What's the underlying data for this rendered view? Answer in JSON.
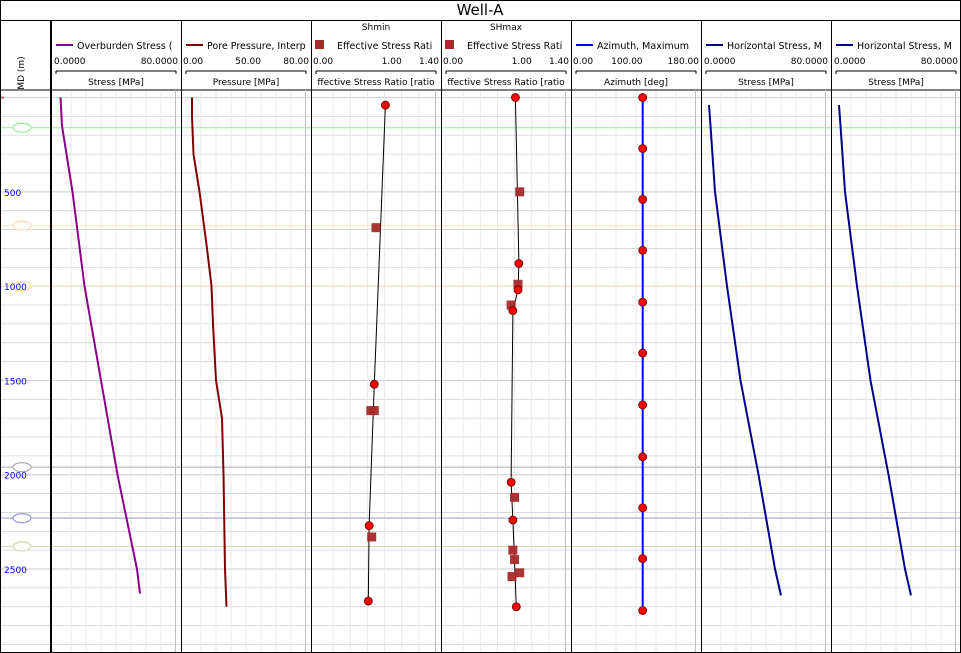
{
  "window_title": "Well-A",
  "depth_axis": {
    "label": "MD (m)",
    "ticks": [
      500,
      1000,
      1500,
      2000,
      2500
    ],
    "range": [
      -40,
      2940
    ]
  },
  "colors": {
    "overburden": "#8b008b",
    "pore_pressure": "#800000",
    "stress_ratio_points": "#ff0000",
    "stress_ratio_squares": "#a52a2a",
    "azimuth": "#0000ff",
    "horizontal_stress": "#00008b",
    "grid": "#d3d3d3",
    "depth_ticks": "#0000ff",
    "markers": [
      {
        "color": "#90ee90"
      },
      {
        "color": "#ffdab9"
      },
      {
        "color": "#ffdab9"
      },
      {
        "color": "#a9a9a9"
      },
      {
        "color": "#9999dd"
      },
      {
        "color": "#d8d8a8"
      }
    ]
  },
  "marker_depths": [
    160,
    680,
    1000,
    1960,
    2230,
    2380
  ],
  "chart_data": [
    {
      "type": "line",
      "track": "overburden",
      "title": "",
      "legend": "Overburden Stress (",
      "xlabel": "Stress [MPa]",
      "xlim": [
        0,
        80
      ],
      "x_tick_labels": [
        "0.0000",
        "80.0000"
      ],
      "series": [
        {
          "name": "Overburden Stress (",
          "points": [
            [
              3,
              0
            ],
            [
              4,
              150
            ],
            [
              5,
              200
            ],
            [
              11,
              500
            ],
            [
              19,
              1000
            ],
            [
              30,
              1500
            ],
            [
              41,
              2000
            ],
            [
              54,
              2500
            ],
            [
              56,
              2630
            ]
          ]
        }
      ]
    },
    {
      "type": "line",
      "track": "pore_pressure",
      "title": "",
      "legend": "Pore Pressure, Interp",
      "xlabel": "Pressure [MPa]",
      "xlim": [
        0,
        80
      ],
      "x_tick_labels": [
        "0.00",
        "50.00",
        "80.00"
      ],
      "series": [
        {
          "name": "Pore Pressure, Interp",
          "points": [
            [
              4,
              0
            ],
            [
              4,
              100
            ],
            [
              5,
              300
            ],
            [
              9,
              500
            ],
            [
              14,
              800
            ],
            [
              17,
              1000
            ],
            [
              18,
              1200
            ],
            [
              20,
              1500
            ],
            [
              24,
              1700
            ],
            [
              25,
              2000
            ],
            [
              26,
              2500
            ],
            [
              27,
              2700
            ]
          ]
        }
      ]
    },
    {
      "type": "scatter",
      "track": "shmin",
      "title": "Shmin",
      "legend": "Effective Stress Rati",
      "xlabel": "ffective Stress Ratio [ratio",
      "xlim": [
        0,
        1.4
      ],
      "x_tick_labels": [
        "0.00",
        "1.00",
        "1.40"
      ],
      "line_points": [
        [
          0.81,
          40
        ],
        [
          0.68,
          1520
        ],
        [
          0.62,
          2270
        ],
        [
          0.61,
          2670
        ]
      ],
      "square_points": [
        [
          0.7,
          690
        ],
        [
          0.64,
          1660
        ],
        [
          0.68,
          1660
        ],
        [
          0.65,
          2330
        ]
      ]
    },
    {
      "type": "scatter",
      "track": "shmax",
      "title": "SHmax",
      "legend": "Effective Stress Rati",
      "xlabel": "ffective Stress Ratio [ratio",
      "xlim": [
        0,
        1.4
      ],
      "x_tick_labels": [
        "0.00",
        "1.00",
        "1.40"
      ],
      "line_points": [
        [
          0.81,
          0
        ],
        [
          0.85,
          880
        ],
        [
          0.84,
          1020
        ],
        [
          0.78,
          1130
        ],
        [
          0.76,
          2040
        ],
        [
          0.78,
          2240
        ],
        [
          0.82,
          2700
        ]
      ],
      "square_points": [
        [
          0.86,
          500
        ],
        [
          0.84,
          990
        ],
        [
          0.76,
          1100
        ],
        [
          0.8,
          2120
        ],
        [
          0.78,
          2400
        ],
        [
          0.8,
          2450
        ],
        [
          0.86,
          2520
        ],
        [
          0.77,
          2540
        ]
      ]
    },
    {
      "type": "line",
      "track": "azimuth",
      "title": "",
      "legend": "Azimuth, Maximum",
      "xlabel": "Azimuth [deg]",
      "xlim": [
        0,
        180
      ],
      "x_tick_labels": [
        "0.00",
        "100.00",
        "180.00"
      ],
      "series": [
        {
          "name": "Azimuth, Maximum",
          "points": [
            [
              100,
              0
            ],
            [
              100,
              270
            ],
            [
              100,
              540
            ],
            [
              100,
              810
            ],
            [
              100,
              1085
            ],
            [
              100,
              1355
            ],
            [
              100,
              1630
            ],
            [
              100,
              1905
            ],
            [
              100,
              2175
            ],
            [
              100,
              2445
            ],
            [
              100,
              2720
            ]
          ]
        }
      ]
    },
    {
      "type": "line",
      "track": "horizontal_1",
      "title": "",
      "legend": "Horizontal Stress, M",
      "xlabel": "Stress [MPa]",
      "xlim": [
        0,
        80
      ],
      "x_tick_labels": [
        "0.0000",
        "80.0000"
      ],
      "series": [
        {
          "name": "Horizontal Stress, M",
          "points": [
            [
              2,
              40
            ],
            [
              3,
              150
            ],
            [
              6,
              500
            ],
            [
              14,
              1000
            ],
            [
              23,
              1500
            ],
            [
              35,
              2000
            ],
            [
              46,
              2500
            ],
            [
              50,
              2640
            ]
          ]
        }
      ]
    },
    {
      "type": "line",
      "track": "horizontal_2",
      "title": "",
      "legend": "Horizontal Stress, M",
      "xlabel": "Stress [MPa]",
      "xlim": [
        0,
        80
      ],
      "x_tick_labels": [
        "0.0000",
        "80.0000"
      ],
      "series": [
        {
          "name": "Horizontal Stress, M",
          "points": [
            [
              2,
              40
            ],
            [
              3,
              150
            ],
            [
              6,
              500
            ],
            [
              14,
              1000
            ],
            [
              23,
              1500
            ],
            [
              35,
              2000
            ],
            [
              46,
              2500
            ],
            [
              50,
              2640
            ]
          ]
        }
      ]
    }
  ]
}
